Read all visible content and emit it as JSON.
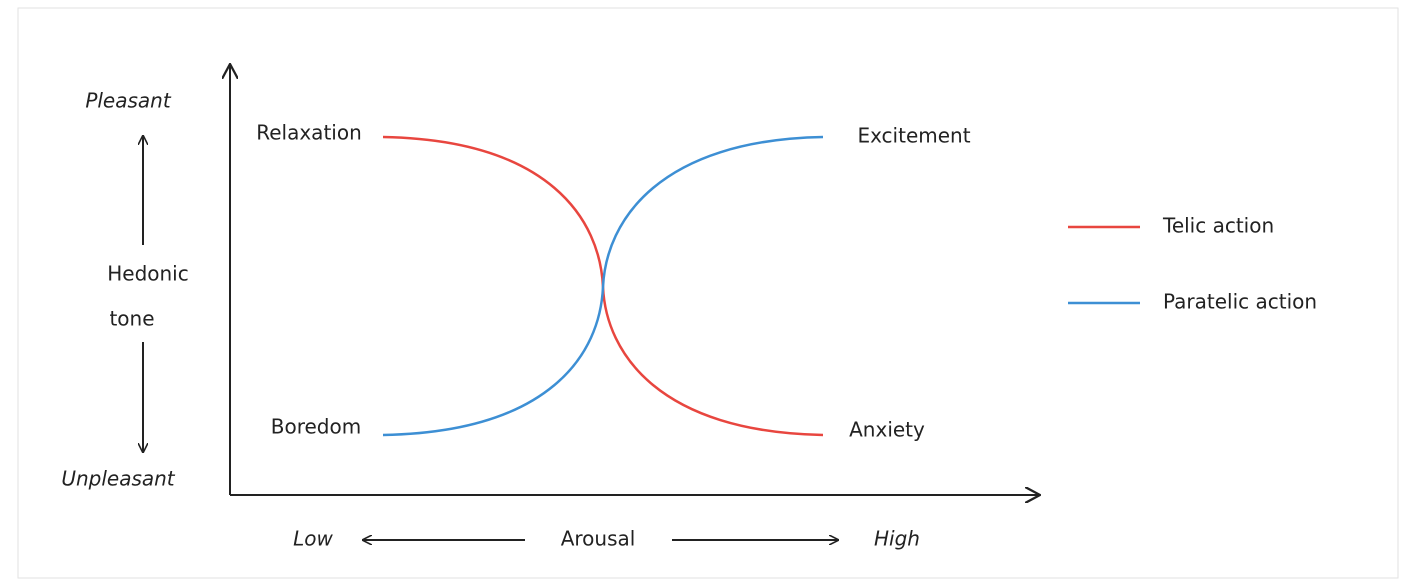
{
  "y_axis": {
    "top": "Pleasant",
    "bottom": "Unpleasant",
    "label": [
      "Hedonic",
      "tone"
    ]
  },
  "x_axis": {
    "left": "Low",
    "label": "Arousal",
    "right": "High"
  },
  "states": {
    "top_left": "Relaxation",
    "bottom_left": "Boredom",
    "top_right": "Excitement",
    "bottom_right": "Anxiety"
  },
  "legend": [
    {
      "name": "Telic action",
      "color": "#e8463f"
    },
    {
      "name": "Paratelic action",
      "color": "#3d8fd4"
    }
  ]
}
